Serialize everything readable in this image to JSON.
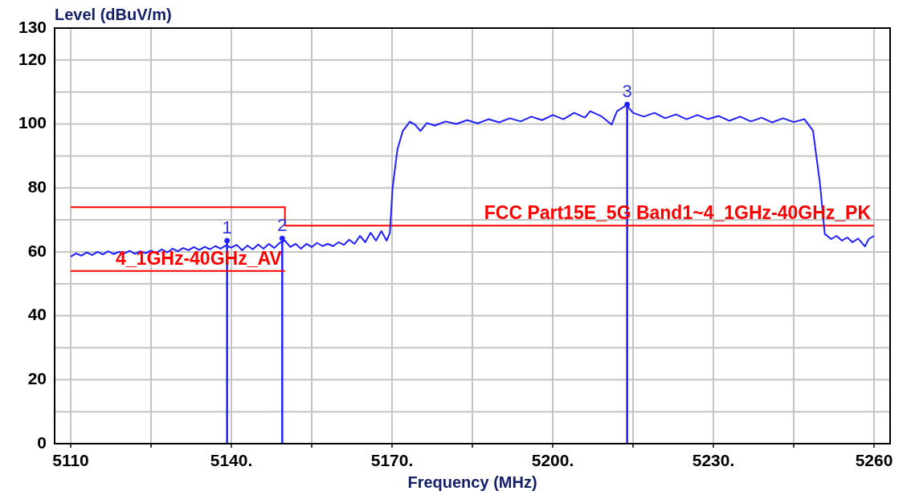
{
  "chart_data": {
    "type": "line",
    "xlabel": "Frequency (MHz)",
    "ylabel": "Level (dBuV/m)",
    "xlim": [
      5107,
      5263
    ],
    "ylim": [
      0,
      130
    ],
    "xticks": [
      5110,
      {
        "value": 5125,
        "label": null
      },
      {
        "value": 5140,
        "label": "5140."
      },
      {
        "value": 5155,
        "label": null
      },
      {
        "value": 5170,
        "label": "5170."
      },
      {
        "value": 5185,
        "label": null
      },
      {
        "value": 5200,
        "label": "5200."
      },
      {
        "value": 5215,
        "label": null
      },
      {
        "value": 5230,
        "label": "5230."
      },
      {
        "value": 5245,
        "label": null
      },
      5260
    ],
    "yticks": [
      0,
      {
        "value": 10,
        "label": null
      },
      20,
      {
        "value": 30,
        "label": null
      },
      40,
      {
        "value": 50,
        "label": null
      },
      60,
      {
        "value": 70,
        "label": null
      },
      80,
      {
        "value": 90,
        "label": null
      },
      100,
      {
        "value": 110,
        "label": null
      },
      120,
      130
    ],
    "grid": true,
    "legend": false,
    "marker": "none",
    "line_style": "solid",
    "series": [
      {
        "color": "#1f1fff",
        "x": [
          5110,
          5111,
          5112,
          5113,
          5114,
          5115,
          5116,
          5117,
          5118,
          5119,
          5120,
          5121,
          5122,
          5123,
          5124,
          5125,
          5126,
          5127,
          5128,
          5129,
          5130,
          5131,
          5132,
          5133,
          5134,
          5135,
          5136,
          5137,
          5138,
          5139,
          5140,
          5141,
          5142,
          5143,
          5144,
          5145,
          5146,
          5147,
          5148,
          5149,
          5150,
          5151,
          5152,
          5153,
          5154,
          5155,
          5156,
          5157,
          5158,
          5159,
          5160,
          5161,
          5162,
          5163,
          5164,
          5165,
          5166,
          5167,
          5168,
          5169,
          5169.6,
          5170.1,
          5171,
          5172,
          5173.3,
          5174.3,
          5175.3,
          5176.5,
          5178,
          5180,
          5182,
          5184,
          5186,
          5188,
          5190,
          5192,
          5194,
          5196,
          5198,
          5200,
          5202,
          5204,
          5206,
          5207,
          5209,
          5211,
          5212,
          5213.8,
          5215,
          5217,
          5219,
          5221,
          5223,
          5225,
          5227,
          5229,
          5231,
          5233,
          5235,
          5237,
          5239,
          5241,
          5243,
          5245,
          5247,
          5248.6,
          5249.9,
          5250.8,
          5252,
          5253,
          5254,
          5255,
          5256,
          5257,
          5258.3,
          5259,
          5260
        ],
        "values": [
          58.5,
          59.5,
          58.8,
          59.8,
          59,
          60,
          59.2,
          60.2,
          59.3,
          60,
          59.5,
          60.3,
          59.4,
          60.2,
          59.6,
          60.4,
          59.7,
          60.8,
          59.8,
          61,
          60.2,
          61.2,
          60.5,
          61.5,
          60.6,
          61.6,
          60.8,
          61.8,
          61,
          62,
          61.3,
          62.2,
          60.5,
          62,
          60.8,
          62.3,
          61,
          62.5,
          61.2,
          62.8,
          63.5,
          61.5,
          62.5,
          61,
          62.5,
          61.5,
          62.8,
          61.8,
          62.5,
          61.8,
          63,
          62.2,
          63.8,
          62.5,
          65,
          63,
          66,
          63.5,
          66.5,
          63.5,
          66,
          80,
          92,
          97.8,
          100.7,
          99.8,
          97.8,
          100.3,
          99.5,
          100.8,
          100,
          101.2,
          100.2,
          101.5,
          100.5,
          101.8,
          100.8,
          102.3,
          101.2,
          102.8,
          101.5,
          103.5,
          102,
          104,
          102.5,
          99.8,
          104,
          105.9,
          103.5,
          102.3,
          103.5,
          101.8,
          103,
          101.5,
          102.8,
          101.5,
          102.5,
          101,
          102.3,
          100.8,
          102,
          100.5,
          101.8,
          100.6,
          101.5,
          97.9,
          81.4,
          65.6,
          64,
          65,
          63.5,
          64.5,
          63,
          64.2,
          61.7,
          64,
          65
        ]
      },
      {
        "name": "FCC Part15E_5G Band1~4_1GHz-40GHz_PK",
        "color": "#ff0000",
        "x": [
          5110,
          5150,
          5150,
          5260
        ],
        "values": [
          74,
          74,
          68.2,
          68.2
        ]
      },
      {
        "name": "4_1GHz-40GHz_AV",
        "color": "#ff0000",
        "x": [
          5110,
          5150
        ],
        "values": [
          54,
          54
        ]
      },
      {
        "type": "lollipop",
        "marker": "circle",
        "color": "#1f1fff",
        "x": [
          5139.2,
          5149.5,
          5213.9
        ],
        "values": [
          63.5,
          64.2,
          106.1
        ]
      }
    ],
    "annotations": [
      {
        "text": "1",
        "x": 5139.2,
        "y": 63.5
      },
      {
        "text": "2",
        "x": 5149.5,
        "y": 64.2
      },
      {
        "text": "3",
        "x": 5213.9,
        "y": 106.1
      }
    ]
  }
}
